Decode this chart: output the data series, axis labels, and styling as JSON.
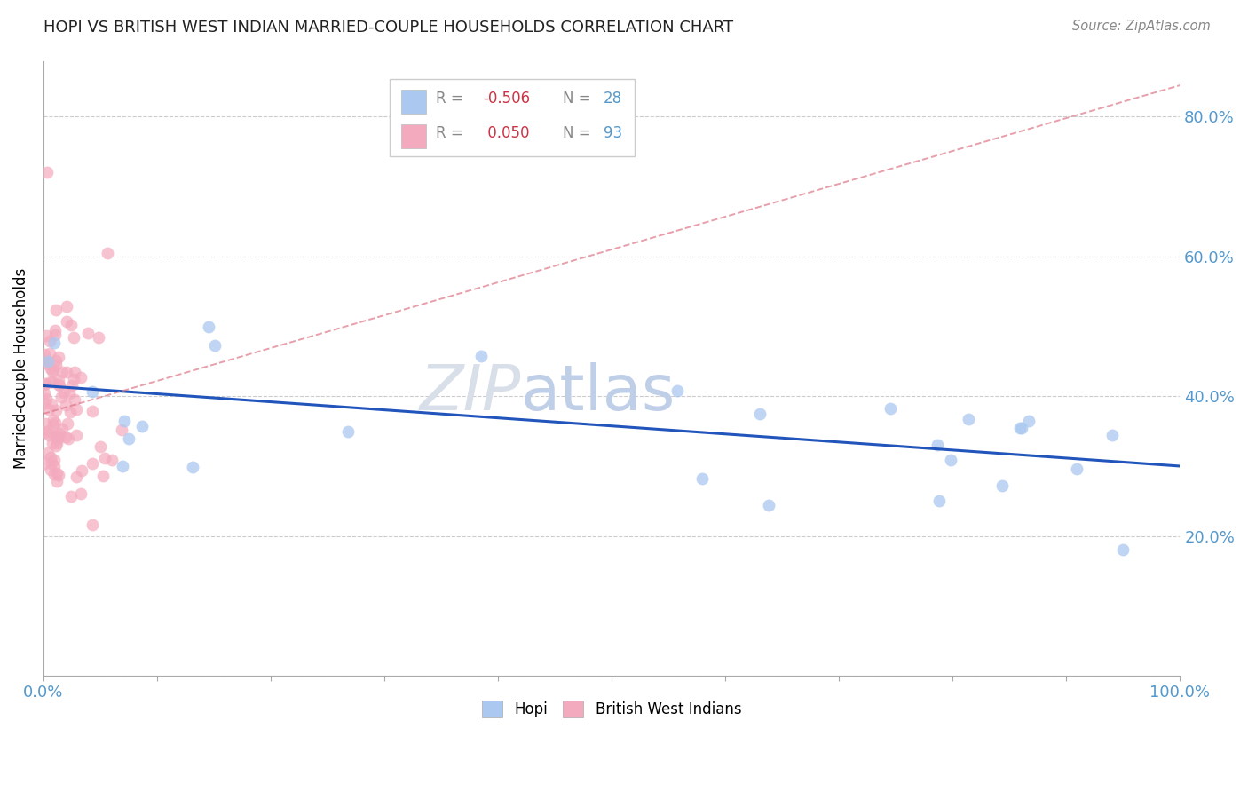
{
  "title": "HOPI VS BRITISH WEST INDIAN MARRIED-COUPLE HOUSEHOLDS CORRELATION CHART",
  "source": "Source: ZipAtlas.com",
  "ylabel": "Married-couple Households",
  "hopi_color": "#aac8f0",
  "bwi_color": "#f4aabe",
  "hopi_line_color": "#2255bb",
  "bwi_line_color": "#dd7788",
  "hopi_R": -0.506,
  "bwi_R": 0.05,
  "hopi_N": 28,
  "bwi_N": 93,
  "ytick_vals": [
    0.0,
    0.2,
    0.4,
    0.6,
    0.8
  ],
  "ytick_labels": [
    "",
    "20.0%",
    "40.0%",
    "60.0%",
    "80.0%"
  ],
  "watermark_zip": "ZIP",
  "watermark_atlas": "atlas",
  "legend_label1": "Hopi",
  "legend_label2": "British West Indians",
  "hopi_intercept": 0.415,
  "hopi_slope": -0.115,
  "bwi_intercept": 0.375,
  "bwi_slope": 0.47,
  "tick_color": "#5599cc",
  "grid_color": "#cccccc",
  "spine_color": "#aaaaaa"
}
